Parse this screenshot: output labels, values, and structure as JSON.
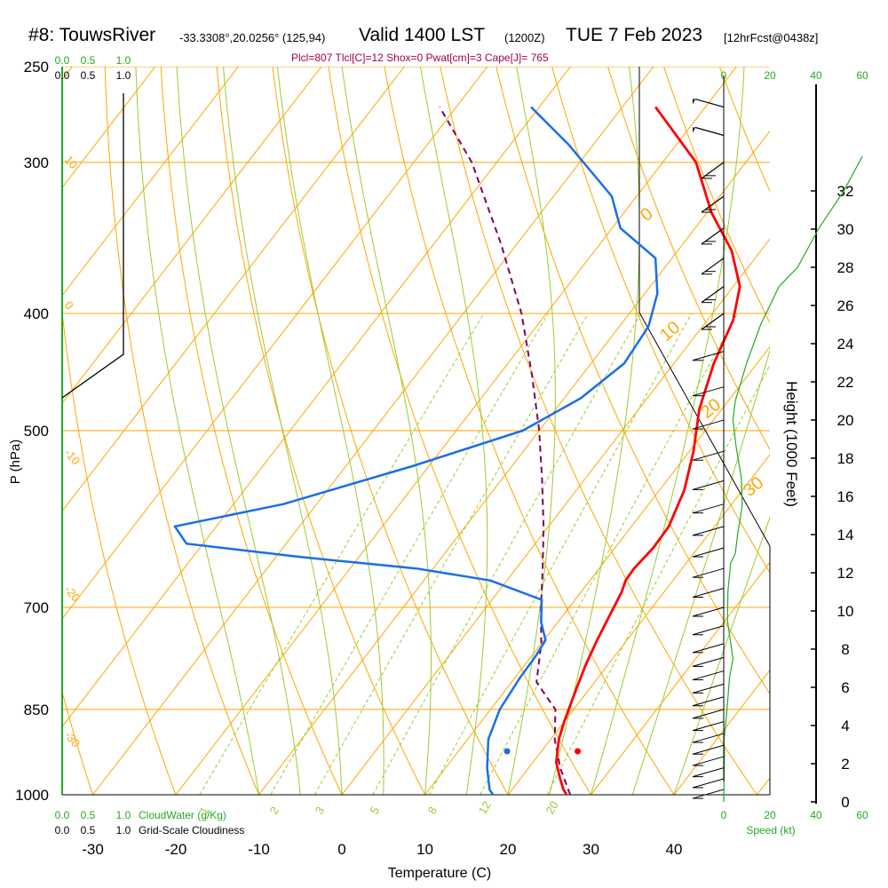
{
  "header": {
    "station": "#8: TouwsRiver",
    "coords": "-33.3308°,20.0256° (125,94)",
    "valid": "Valid 1400 LST",
    "zulu": "(1200Z)",
    "date": "TUE 7 Feb 2023",
    "fcst": "[12hrFcst@0438z]"
  },
  "stats_line": "Plcl=807 Tlcl[C]=12 Shox=0 Pwat[cm]=3 Cape[J]= 765",
  "colors": {
    "temperature": "#ff0000",
    "dewpoint": "#1a6ee6",
    "parcel": "#800060",
    "isobar": "#ffa500",
    "mixing_ratio": "#99cc33",
    "green_text": "#22aa22",
    "stats": "#a00050"
  },
  "chart_data": {
    "type": "line",
    "skew_t": true,
    "xlabel": "Temperature (C)",
    "ylabel": "P (hPa)",
    "right_label": "Height (1000 Feet)",
    "x_ticks": [
      "-30",
      "-20",
      "-10",
      "0",
      "10",
      "20",
      "30",
      "40"
    ],
    "p_ticks": [
      "250",
      "300",
      "400",
      "500",
      "700",
      "850",
      "1000"
    ],
    "height_ticks": [
      "0",
      "2",
      "4",
      "6",
      "8",
      "10",
      "12",
      "14",
      "16",
      "18",
      "20",
      "22",
      "24",
      "26",
      "28",
      "30",
      "32"
    ],
    "mixing_ratio_labels": [
      "1",
      "2",
      "3",
      "5",
      "8",
      "12",
      "20"
    ],
    "dry_adiabat_labels": [
      "0",
      "10",
      "20",
      "30"
    ],
    "isotherm_labels_left": [
      "10",
      "0",
      "-10",
      "-20",
      "-30"
    ],
    "cloud_scale_top_green": [
      "0.0",
      "0.5",
      "1.0"
    ],
    "cloud_scale_top_black": [
      "0.0",
      "0.5",
      "1.0"
    ],
    "cloud_scale_bottom_green": [
      "0.0",
      "0.5",
      "1.0"
    ],
    "cloud_scale_bottom_black": [
      "0.0",
      "0.5",
      "1.0"
    ],
    "cloud_water_label": "CloudWater (g/Kg)",
    "cloudiness_label": "Grid-Scale Cloudiness",
    "speed_label": "Speed (kt)",
    "speed_ticks": [
      "0",
      "20",
      "40",
      "60"
    ],
    "temperature_series": [
      [
        1005,
        27.5,
        1
      ],
      [
        990,
        26.2,
        1
      ],
      [
        970,
        24.8,
        1
      ],
      [
        940,
        22.8,
        1
      ],
      [
        900,
        21.0,
        1
      ],
      [
        870,
        20.0,
        1
      ],
      [
        840,
        19.1,
        1
      ],
      [
        810,
        18.2,
        1
      ],
      [
        780,
        17.3,
        1
      ],
      [
        745,
        16.4,
        1
      ],
      [
        710,
        15.6,
        1
      ],
      [
        680,
        14.9,
        1
      ],
      [
        665,
        14.3,
        1
      ],
      [
        650,
        14.2,
        1
      ],
      [
        625,
        14.6,
        1
      ],
      [
        600,
        14.5,
        1
      ],
      [
        560,
        13.0,
        1
      ],
      [
        520,
        10.5,
        1
      ],
      [
        480,
        7.3,
        1
      ],
      [
        440,
        4.8,
        1
      ],
      [
        405,
        3.1,
        1
      ],
      [
        380,
        0.8,
        1
      ],
      [
        355,
        -3.5,
        1
      ],
      [
        330,
        -9.5,
        1
      ],
      [
        300,
        -16.0,
        1
      ],
      [
        270,
        -26.0,
        1
      ]
    ],
    "dewpoint_series": [
      [
        1000,
        18.2,
        1
      ],
      [
        990,
        17.3,
        1
      ],
      [
        950,
        15.0,
        1
      ],
      [
        900,
        12.5,
        1
      ],
      [
        850,
        11.1,
        1
      ],
      [
        800,
        10.6,
        1
      ],
      [
        770,
        10.5,
        1
      ],
      [
        745,
        10.2,
        1
      ],
      [
        720,
        8.0,
        1
      ],
      [
        690,
        6.0,
        1
      ],
      [
        665,
        -2.0,
        1
      ],
      [
        650,
        -12.0,
        1
      ],
      [
        636,
        -27.0,
        1
      ],
      [
        620,
        -42.0,
        1
      ],
      [
        600,
        -45.0,
        1
      ],
      [
        575,
        -34.0,
        1
      ],
      [
        535,
        -22.0,
        1
      ],
      [
        500,
        -12.0,
        1
      ],
      [
        470,
        -8.0,
        1
      ],
      [
        440,
        -6.0,
        1
      ],
      [
        410,
        -6.5,
        1
      ],
      [
        385,
        -8.5,
        1
      ],
      [
        360,
        -12.0,
        1
      ],
      [
        340,
        -19.0,
        1
      ],
      [
        320,
        -23.0,
        1
      ],
      [
        290,
        -33.0,
        1
      ],
      [
        270,
        -41.0,
        1
      ]
    ],
    "parcel_series": [
      [
        1000,
        27.5,
        1
      ],
      [
        950,
        23.8,
        1
      ],
      [
        900,
        20.5,
        1
      ],
      [
        850,
        17.8,
        1
      ],
      [
        807,
        13.0,
        1
      ],
      [
        750,
        10.0,
        1
      ],
      [
        700,
        6.6,
        1
      ],
      [
        650,
        3.2,
        1
      ],
      [
        600,
        -0.6,
        1
      ],
      [
        550,
        -5.0,
        1
      ],
      [
        500,
        -10.0,
        1
      ],
      [
        450,
        -16.0,
        1
      ],
      [
        400,
        -23.0,
        1
      ],
      [
        350,
        -32.0,
        1
      ],
      [
        300,
        -43.0,
        1
      ],
      [
        270,
        -52.0,
        1
      ]
    ],
    "surface_temperature": 28.4,
    "surface_dewpoint": 19.9,
    "height_profile_kft": [
      [
        0.0,
        0.0
      ],
      [
        2.7,
        0.3
      ],
      [
        3.2,
        0.1
      ],
      [
        4.5,
        1.2
      ],
      [
        6.5,
        2.5
      ],
      [
        7.5,
        4.0
      ],
      [
        9.5,
        1.6
      ],
      [
        11.0,
        1.8
      ],
      [
        12.5,
        3.0
      ],
      [
        13.0,
        5.0
      ],
      [
        14.0,
        6.0
      ],
      [
        15.5,
        8.0
      ],
      [
        17.0,
        7.6
      ],
      [
        18.5,
        5.5
      ],
      [
        20.0,
        4.0
      ],
      [
        21.0,
        5.0
      ],
      [
        23.0,
        10.0
      ],
      [
        25.0,
        16.0
      ],
      [
        27.0,
        24.0
      ],
      [
        28.0,
        32.0
      ],
      [
        30.0,
        41.0
      ],
      [
        32.0,
        52.0
      ],
      [
        33.8,
        60.0
      ]
    ],
    "wind_barbs": [
      [
        270,
        40
      ],
      [
        285,
        40
      ],
      [
        300,
        25
      ],
      [
        320,
        25
      ],
      [
        340,
        25
      ],
      [
        360,
        20
      ],
      [
        380,
        20
      ],
      [
        400,
        20
      ],
      [
        430,
        10
      ],
      [
        460,
        10
      ],
      [
        490,
        10
      ],
      [
        520,
        10
      ],
      [
        550,
        10
      ],
      [
        575,
        10
      ],
      [
        600,
        10
      ],
      [
        625,
        10
      ],
      [
        650,
        10
      ],
      [
        675,
        10
      ],
      [
        700,
        10
      ],
      [
        725,
        10
      ],
      [
        750,
        10
      ],
      [
        770,
        5
      ],
      [
        790,
        5
      ],
      [
        810,
        5
      ],
      [
        830,
        5
      ],
      [
        850,
        5
      ],
      [
        870,
        5
      ],
      [
        890,
        5
      ],
      [
        910,
        5
      ],
      [
        930,
        5
      ],
      [
        950,
        5
      ],
      [
        970,
        5
      ],
      [
        990,
        5
      ]
    ]
  }
}
